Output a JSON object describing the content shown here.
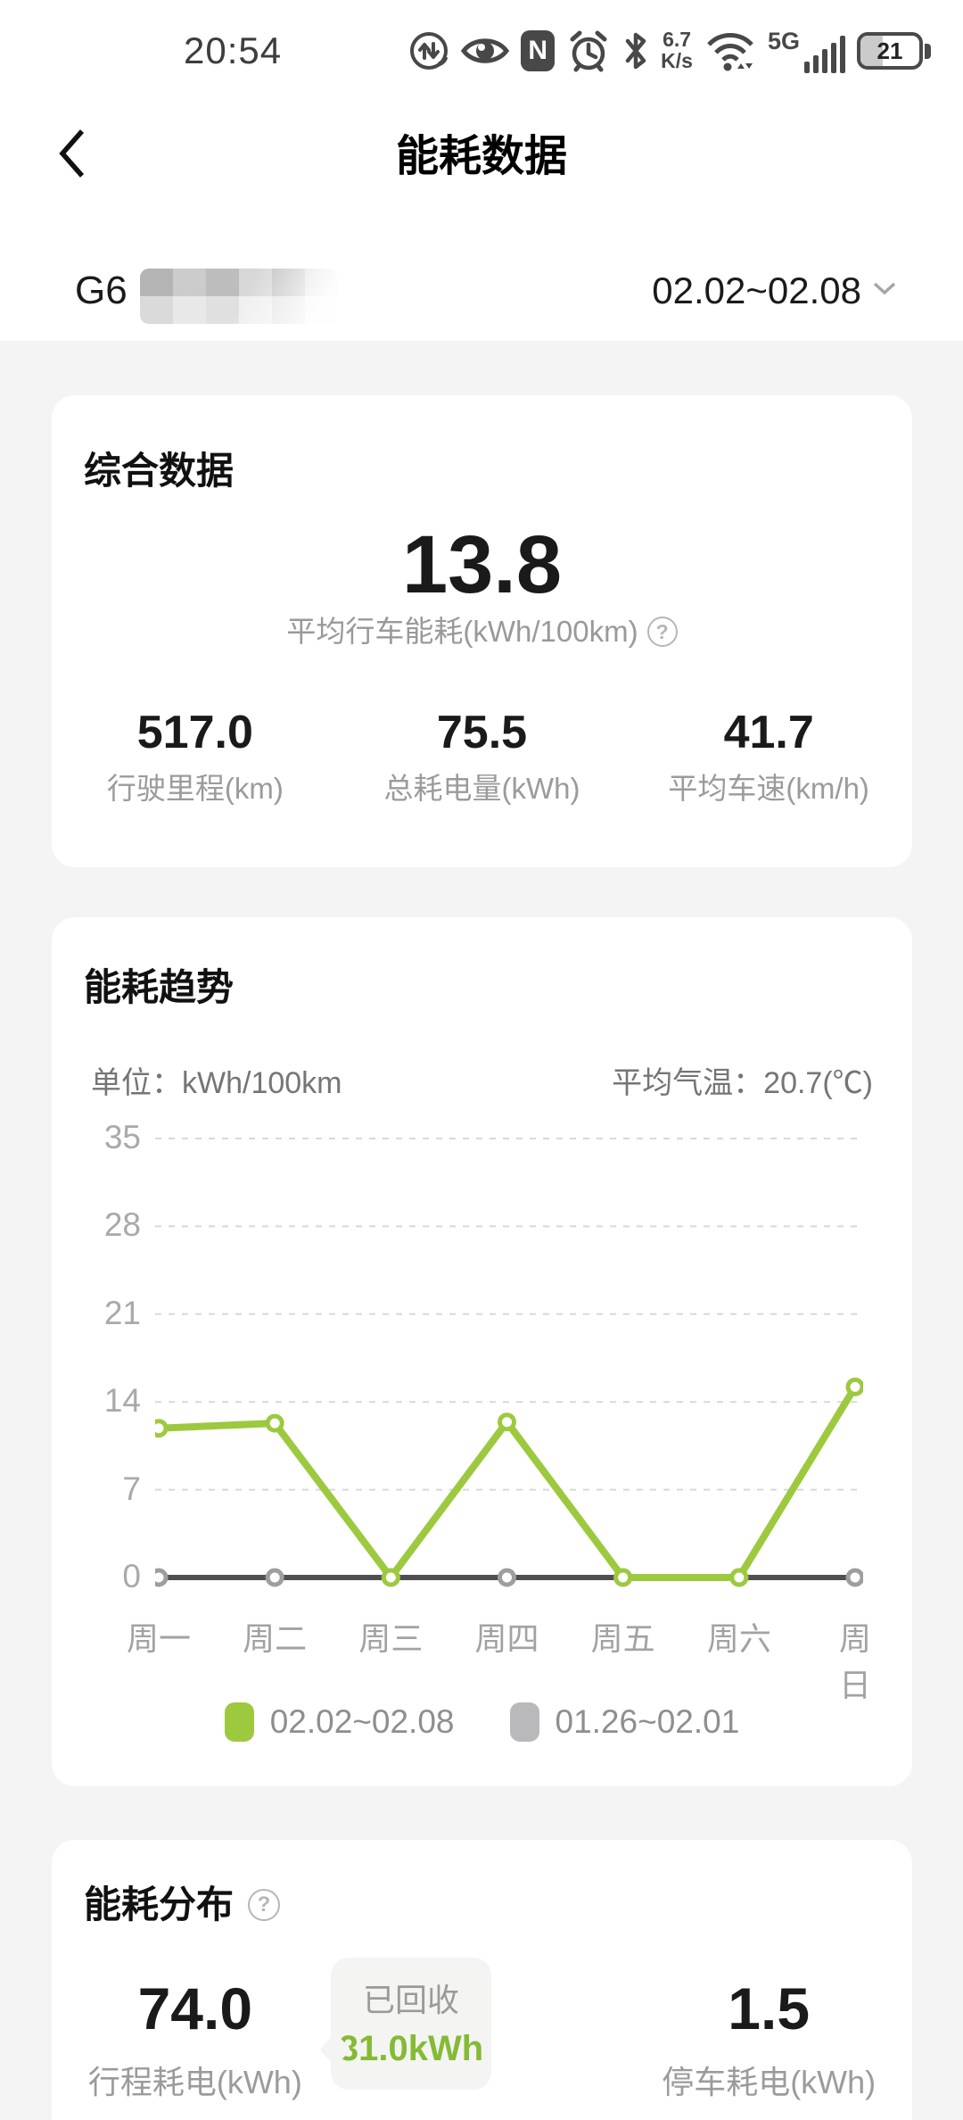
{
  "status_bar": {
    "time": "20:54",
    "network_speed_value": "6.7",
    "network_speed_unit": "K/s",
    "network_type": "5G",
    "battery_level": "21",
    "icons": [
      "data-saver",
      "eye-comfort",
      "nfc",
      "alarm-clock",
      "bluetooth",
      "wifi",
      "signal-5g",
      "battery"
    ]
  },
  "nav": {
    "title": "能耗数据"
  },
  "vehicle": {
    "model": "G6",
    "date_range": "02.02~02.08"
  },
  "summary_card": {
    "title": "综合数据",
    "primary_value": "13.8",
    "primary_label": "平均行车能耗(kWh/100km)",
    "stats": [
      {
        "value": "517.0",
        "label": "行驶里程(km)"
      },
      {
        "value": "75.5",
        "label": "总耗电量(kWh)"
      },
      {
        "value": "41.7",
        "label": "平均车速(km/h)"
      }
    ]
  },
  "trend_card": {
    "title": "能耗趋势",
    "unit_label": "单位：kWh/100km",
    "avg_temp_label": "平均气温：20.7(℃)"
  },
  "chart_data": {
    "type": "line",
    "title": "能耗趋势",
    "ylabel": "kWh/100km",
    "categories": [
      "周一",
      "周二",
      "周三",
      "周四",
      "周五",
      "周六",
      "周日"
    ],
    "series": [
      {
        "name": "02.02~02.08",
        "color": "#9dc93f",
        "legend_color": "#9dc93f",
        "marker_color": "#9dc93f",
        "line_width": 8,
        "values": [
          11.9,
          12.3,
          0,
          12.4,
          0,
          0,
          15.2
        ]
      },
      {
        "name": "01.26~02.01",
        "color": "#4f4f4f",
        "legend_color": "#b9b9bc",
        "marker_color": "#9e9e9e",
        "line_width": 6,
        "values": [
          0,
          0,
          0,
          0,
          0,
          0,
          0
        ]
      }
    ],
    "ylim": [
      0,
      35
    ],
    "yticks": [
      0,
      7,
      14,
      21,
      28,
      35
    ],
    "grid": "dashed-horizontal",
    "grid_color": "#d8d8d8",
    "legend_position": "bottom"
  },
  "distribution_card": {
    "title": "能耗分布",
    "left_stat": {
      "value": "74.0",
      "label": "行程耗电(kWh)"
    },
    "recovered_badge": {
      "label": "已回收",
      "value": "31.0kWh"
    },
    "right_stat": {
      "value": "1.5",
      "label": "停车耗电(kWh)"
    }
  },
  "colors": {
    "accent_green": "#9dc93f",
    "recovered_green": "#85ba35",
    "page_background": "#f4f4f5",
    "card_background": "#ffffff",
    "secondary_text": "#9b9b9b"
  }
}
